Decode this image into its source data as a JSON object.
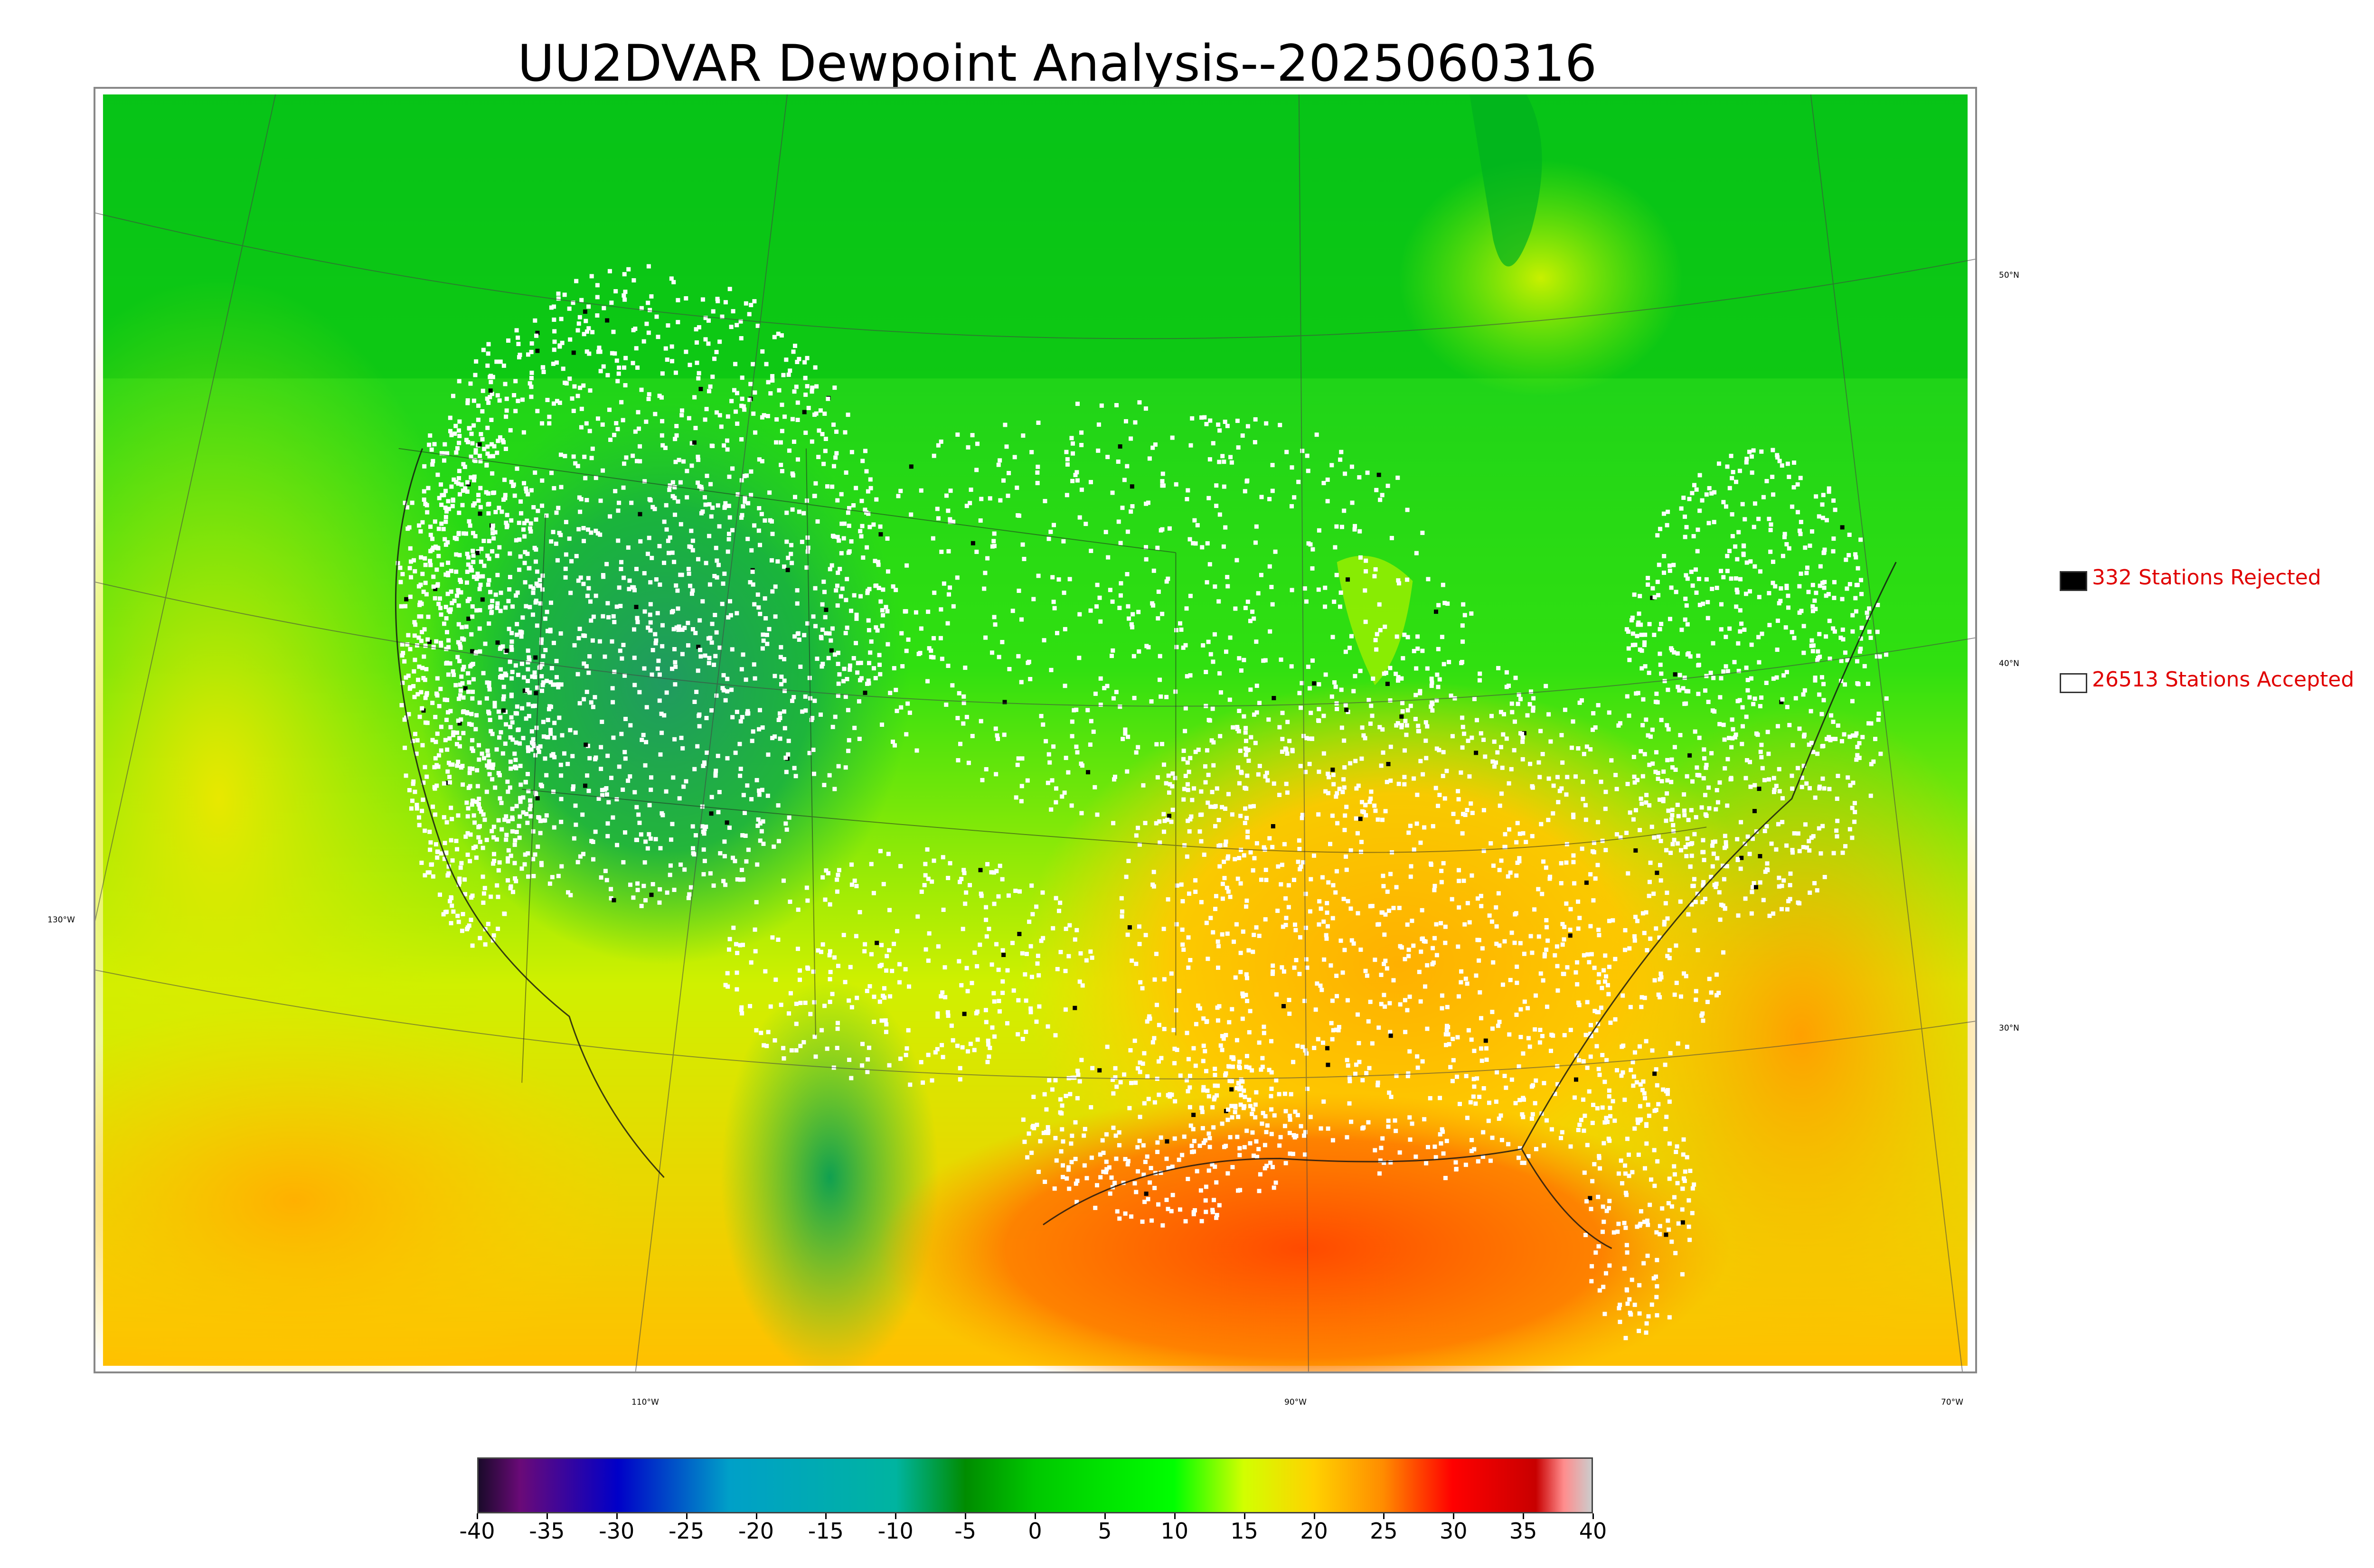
{
  "title": "UU2DVAR Dewpoint Analysis--2025060316",
  "legend": {
    "rejected": {
      "label": "332 Stations Rejected",
      "color": "#000000"
    },
    "accepted": {
      "label": "26513 Stations Accepted",
      "color": "#ffffff"
    },
    "text_color": "#e00000"
  },
  "grid_labels": {
    "latitudes": [
      "50°N",
      "40°N",
      "30°N"
    ],
    "longitude_left": "130°W",
    "longitudes_bottom": [
      "110°W",
      "90°W",
      "70°W"
    ]
  },
  "colorbar": {
    "ticks": [
      "-40",
      "-35",
      "-30",
      "-25",
      "-20",
      "-15",
      "-10",
      "-5",
      "0",
      "5",
      "10",
      "15",
      "20",
      "25",
      "30",
      "35",
      "40"
    ],
    "range": [
      -40,
      40
    ],
    "units_shown": "none",
    "color_stops": [
      {
        "value": -40,
        "color": "#1a0a2a"
      },
      {
        "value": -37,
        "color": "#6a0a78"
      },
      {
        "value": -30,
        "color": "#0000c8"
      },
      {
        "value": -22,
        "color": "#00a0c8"
      },
      {
        "value": -10,
        "color": "#00b4a0"
      },
      {
        "value": -5,
        "color": "#008c00"
      },
      {
        "value": 0,
        "color": "#00c800"
      },
      {
        "value": 10,
        "color": "#00ff00"
      },
      {
        "value": 15,
        "color": "#d2ff00"
      },
      {
        "value": 20,
        "color": "#ffd200"
      },
      {
        "value": 25,
        "color": "#ff8c00"
      },
      {
        "value": 30,
        "color": "#ff0000"
      },
      {
        "value": 36,
        "color": "#c80000"
      },
      {
        "value": 38,
        "color": "#ff8c8c"
      },
      {
        "value": 40,
        "color": "#cccccc"
      }
    ]
  },
  "map_colors": {
    "ocean_pacific": "#c8f000",
    "north_canada": "#00c800",
    "rockies": "#18a040",
    "great_plains": "#30e000",
    "southeast": "#ffc000",
    "gulf": "#ff6a00",
    "atlantic": "#ffb000"
  }
}
